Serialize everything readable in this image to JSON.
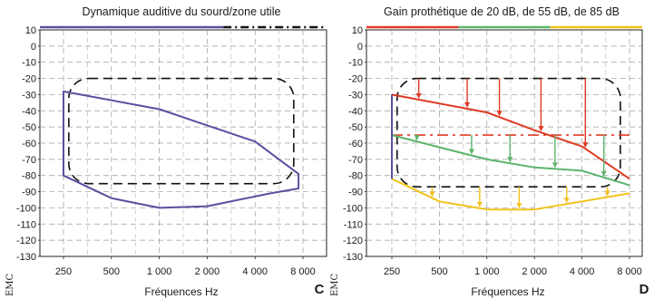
{
  "chart_data": [
    {
      "panel": "C",
      "type": "line",
      "title": "Dynamique auditive du sourd/zone utile",
      "xlabel": "Fréquences Hz",
      "ylabel": "",
      "x_scale": "log",
      "x_ticks": [
        250,
        500,
        1000,
        2000,
        4000,
        8000
      ],
      "x_tick_labels": [
        "250",
        "500",
        "1 000",
        "2 000",
        "4 000",
        "8 000"
      ],
      "ylim": [
        -130,
        10
      ],
      "y_ticks": [
        10,
        0,
        -10,
        -20,
        -30,
        -40,
        -50,
        -60,
        -70,
        -80,
        -90,
        -100,
        -110,
        -120,
        -130
      ],
      "y_tick_labels": [
        "10",
        "0",
        "-10",
        "-20",
        "-30",
        "-40",
        "-50",
        "-60",
        "-70",
        "-80",
        "-90",
        "-100",
        "-110",
        "-120",
        "-130"
      ],
      "grid": true,
      "legend": "title-bar",
      "series": [
        {
          "name": "Dynamique auditive du sourd",
          "color": "#5b4fa0",
          "closed": true,
          "points": [
            [
              250,
              -28
            ],
            [
              1000,
              -39
            ],
            [
              2000,
              -49
            ],
            [
              4000,
              -59
            ],
            [
              7500,
              -79
            ],
            [
              7500,
              -88
            ],
            [
              5000,
              -91
            ],
            [
              2000,
              -99
            ],
            [
              1000,
              -100
            ],
            [
              500,
              -94
            ],
            [
              250,
              -80
            ]
          ]
        }
      ],
      "zone": {
        "name": "zone utile",
        "color": "#111111",
        "style": "dashed",
        "x_range": [
          270,
          7000
        ],
        "y_range": [
          -85,
          -20
        ]
      },
      "corner_label": "C",
      "logo": "EMC"
    },
    {
      "panel": "D",
      "type": "line",
      "title": "Gain prothétique de 20 dB, de 55 dB, de 85 dB",
      "xlabel": "Fréquences Hz",
      "ylabel": "",
      "x_scale": "log",
      "x_ticks": [
        250,
        500,
        1000,
        2000,
        4000,
        8000
      ],
      "x_tick_labels": [
        "250",
        "500",
        "1 000",
        "2 000",
        "4 000",
        "8 000"
      ],
      "ylim": [
        -130,
        10
      ],
      "y_ticks": [
        10,
        0,
        -10,
        -20,
        -30,
        -40,
        -50,
        -60,
        -70,
        -80,
        -90,
        -100,
        -110,
        -120,
        -130
      ],
      "y_tick_labels": [
        "10",
        "0",
        "-10",
        "-20",
        "-30",
        "-40",
        "-50",
        "-60",
        "-70",
        "-80",
        "-90",
        "-100",
        "-110",
        "-120",
        "-130"
      ],
      "grid": true,
      "legend": "title-bar",
      "title_bar_colors": [
        "#e03a23",
        "#5cb46c",
        "#f2c21b"
      ],
      "series": [
        {
          "name": "20 dB",
          "color": "#e03a23",
          "points": [
            [
              250,
              -30
            ],
            [
              1000,
              -41
            ],
            [
              2000,
              -52
            ],
            [
              4000,
              -62
            ],
            [
              8000,
              -82
            ]
          ],
          "gain_level": -55
        },
        {
          "name": "55 dB",
          "color": "#5cb46c",
          "points": [
            [
              250,
              -55
            ],
            [
              1000,
              -70
            ],
            [
              2000,
              -75
            ],
            [
              4000,
              -77
            ],
            [
              8000,
              -86
            ]
          ]
        },
        {
          "name": "85 dB",
          "color": "#f2c21b",
          "points": [
            [
              250,
              -82
            ],
            [
              500,
              -96
            ],
            [
              1000,
              -101
            ],
            [
              2000,
              -101
            ],
            [
              4000,
              -96
            ],
            [
              8000,
              -91
            ]
          ]
        }
      ],
      "gain_arrows": [
        {
          "color": "#e03a23",
          "x": [
            370,
            750,
            1200,
            2200,
            4200
          ]
        },
        {
          "color": "#5cb46c",
          "x": [
            360,
            800,
            1400,
            2700,
            5500
          ]
        },
        {
          "color": "#f2c21b",
          "x": [
            450,
            900,
            1600,
            3200,
            5800
          ]
        }
      ],
      "zone": {
        "name": "zone utile",
        "color": "#111111",
        "style": "dashed",
        "x_range": [
          270,
          7000
        ],
        "y_range": [
          -87,
          -20
        ]
      },
      "corner_label": "D",
      "logo": "EMC"
    }
  ]
}
